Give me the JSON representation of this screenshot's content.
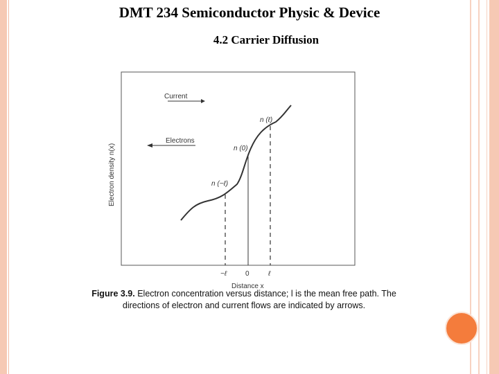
{
  "slide": {
    "title": "DMT 234 Semiconductor Physic & Device",
    "subtitle": "4.2 Carrier Diffusion"
  },
  "figure": {
    "y_axis_label": "Electron density n(x)",
    "x_axis_label": "Distance x",
    "current_label": "Current",
    "electrons_label": "Electrons",
    "label_n_plus_l": "n (ℓ)",
    "label_n_zero": "n (0)",
    "label_n_minus_l": "n (−ℓ)",
    "tick_minus_l": "−ℓ",
    "tick_zero": "0",
    "tick_plus_l": "ℓ",
    "caption_bold": "Figure 3.9.",
    "caption_text": " Electron concentration versus distance; l is the mean free path. The directions of electron and current flows are indicated by arrows."
  },
  "colors": {
    "border_band": "#f6c9b4",
    "accent_circle": "#f47c3c"
  }
}
